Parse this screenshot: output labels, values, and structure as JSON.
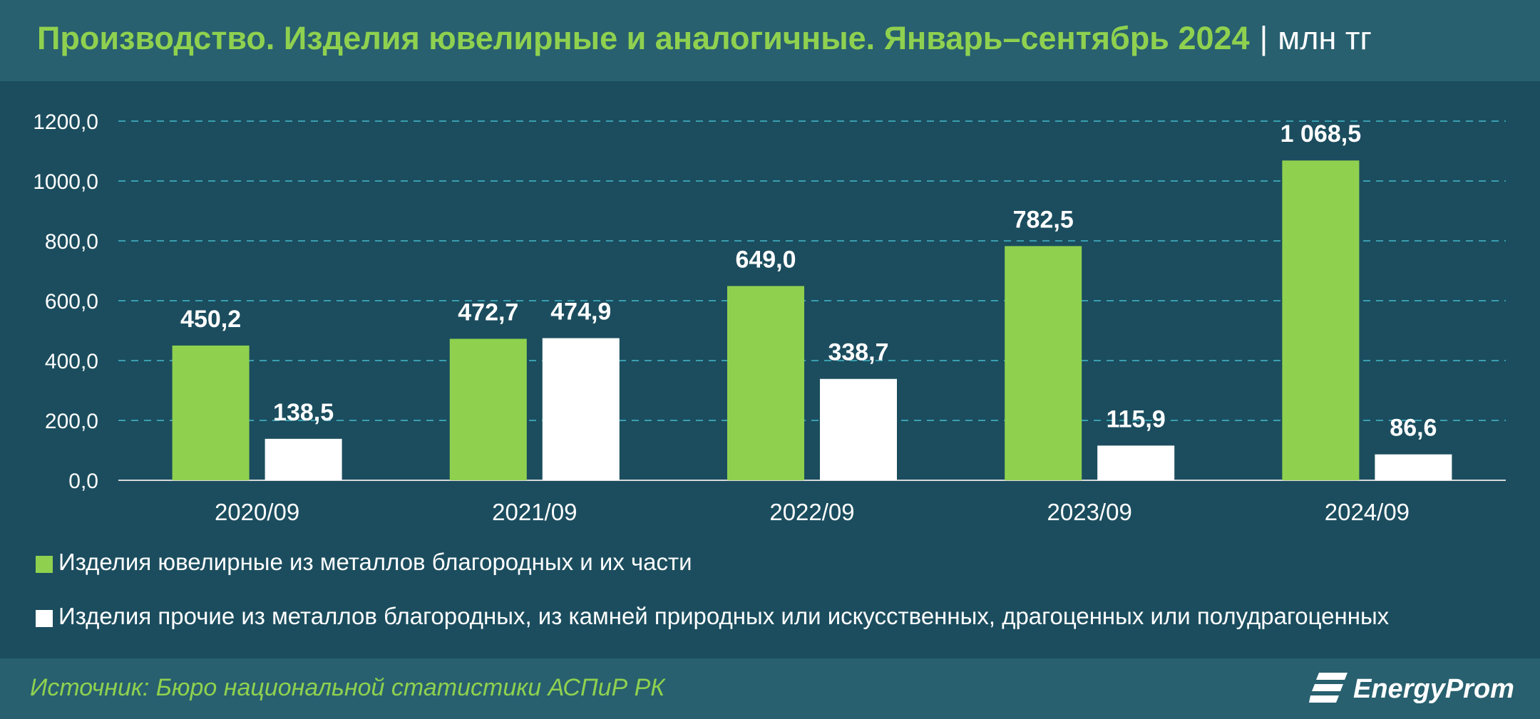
{
  "header": {
    "title": "Производство. Изделия ювелирные и аналогичные. Январь–сентябрь 2024",
    "separator": "|",
    "unit": "млн тг"
  },
  "chart_data": {
    "type": "bar",
    "categories": [
      "2020/09",
      "2021/09",
      "2022/09",
      "2023/09",
      "2024/09"
    ],
    "series": [
      {
        "name": "Изделия ювелирные из металлов благородных и их части",
        "color": "#8fd14f",
        "values": [
          450.2,
          472.7,
          649.0,
          782.5,
          1068.5
        ],
        "labels": [
          "450,2",
          "472,7",
          "649,0",
          "782,5",
          "1 068,5"
        ]
      },
      {
        "name": "Изделия прочие из металлов благородных, из камней природных или искусственных, драгоценных или полудрагоценных",
        "color": "#ffffff",
        "values": [
          138.5,
          474.9,
          338.7,
          115.9,
          86.6
        ],
        "labels": [
          "138,5",
          "474,9",
          "338,7",
          "115,9",
          "86,6"
        ]
      }
    ],
    "yticks": [
      0,
      200,
      400,
      600,
      800,
      1000,
      1200
    ],
    "ytick_labels": [
      "0,0",
      "200,0",
      "400,0",
      "600,0",
      "800,0",
      "1000,0",
      "1200,0"
    ],
    "ylim": [
      0,
      1200
    ],
    "grid": true,
    "legend_position": "bottom-left"
  },
  "footer": {
    "source": "Источник: Бюро национальной статистики АСПиР РК",
    "logo_text": "EnergyProm"
  },
  "colors": {
    "background": "#1b4d5e",
    "header_bg": "#28606f",
    "accent_green": "#8fd14f",
    "grid": "#3a9fb0"
  }
}
